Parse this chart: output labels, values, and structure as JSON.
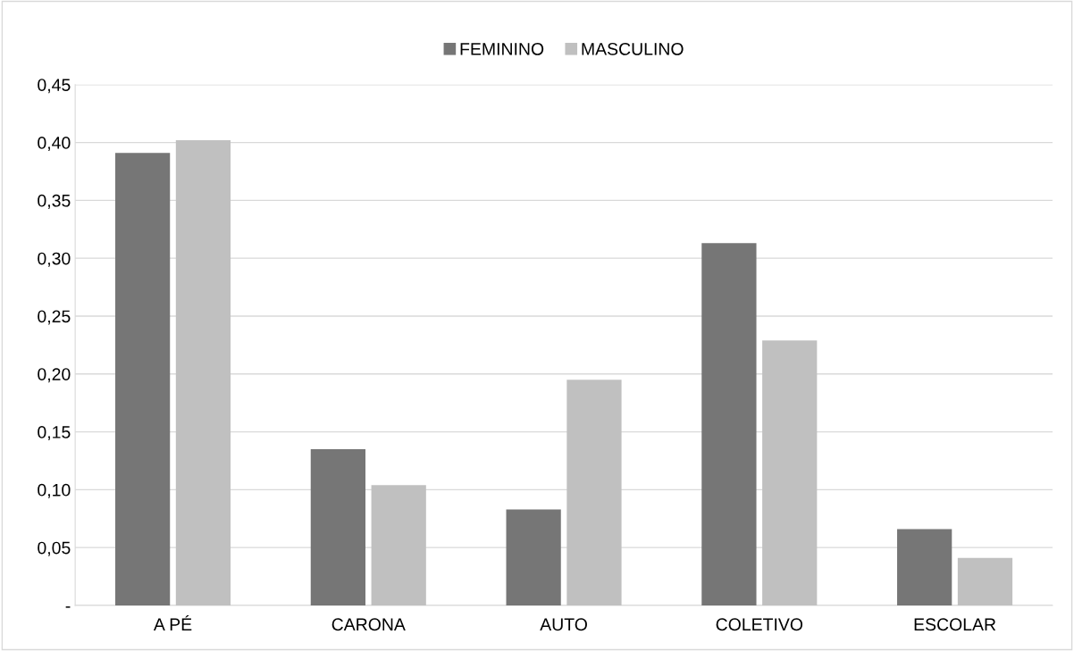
{
  "chart_data": {
    "type": "bar",
    "categories": [
      "A PÉ",
      "CARONA",
      "AUTO",
      "COLETIVO",
      "ESCOLAR"
    ],
    "series": [
      {
        "name": "FEMININO",
        "color": "#767676",
        "values": [
          0.391,
          0.135,
          0.083,
          0.313,
          0.066
        ]
      },
      {
        "name": "MASCULINO",
        "color": "#c0c0c0",
        "values": [
          0.402,
          0.104,
          0.195,
          0.229,
          0.041
        ]
      }
    ],
    "ylim": [
      0,
      0.45
    ],
    "yticks": [
      {
        "value": 0,
        "label": "-"
      },
      {
        "value": 0.05,
        "label": "0,05"
      },
      {
        "value": 0.1,
        "label": "0,10"
      },
      {
        "value": 0.15,
        "label": "0,15"
      },
      {
        "value": 0.2,
        "label": "0,20"
      },
      {
        "value": 0.25,
        "label": "0,25"
      },
      {
        "value": 0.3,
        "label": "0,30"
      },
      {
        "value": 0.35,
        "label": "0,35"
      },
      {
        "value": 0.4,
        "label": "0,40"
      },
      {
        "value": 0.45,
        "label": "0,45"
      }
    ],
    "grid": "y",
    "legend": "top"
  }
}
